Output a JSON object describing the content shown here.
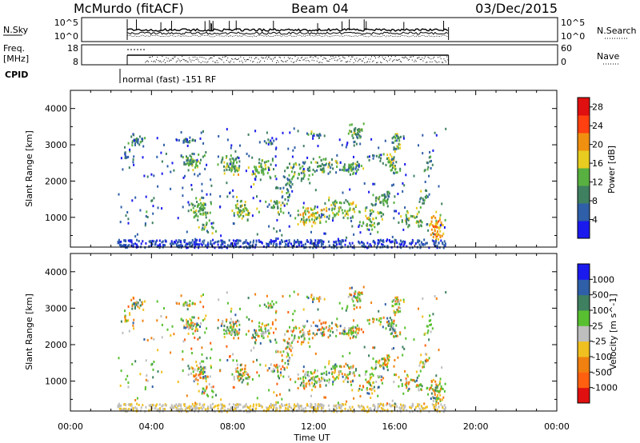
{
  "header": {
    "station": "McMurdo (fitACF)",
    "beam": "Beam 04",
    "date": "03/Dec/2015"
  },
  "noise_panel": {
    "left_label": "N.Sky",
    "right_label": "N.Search",
    "left_ticks": [
      "10^5",
      "10^0"
    ],
    "right_ticks": [
      "10^5",
      "10^0"
    ]
  },
  "freq_panel": {
    "left_label_1": "Freq.",
    "left_label_2": "[MHz]",
    "left_ticks": [
      "18",
      "8"
    ],
    "right_label": "Nave",
    "right_ticks": [
      "60",
      "0"
    ]
  },
  "cpid": {
    "label": "CPID",
    "mode": "normal (fast) -151 RF"
  },
  "chart_data": [
    {
      "type": "heatmap",
      "parameter": "power",
      "ylabel": "Slant Range [km]",
      "xlabel": "",
      "xlim": [
        0,
        24
      ],
      "ylim": [
        180,
        4500
      ],
      "x_ticks": [
        "00:00",
        "04:00",
        "08:00",
        "12:00",
        "16:00",
        "20:00",
        "00:00"
      ],
      "y_ticks": [
        1000,
        2000,
        3000,
        4000
      ],
      "data_window_hours": [
        2.3,
        18.5
      ],
      "colorbar": {
        "label": "Power [dB]",
        "ticks": [
          4,
          8,
          12,
          16,
          20,
          24,
          28
        ],
        "range": [
          0,
          30
        ],
        "colors": [
          "#1a1aee",
          "#2f5fa8",
          "#3f8060",
          "#58b040",
          "#e8cc20",
          "#f09010",
          "#ff4010",
          "#e01010"
        ]
      }
    },
    {
      "type": "heatmap",
      "parameter": "velocity",
      "ylabel": "Slant Range [km]",
      "xlabel": "Time UT",
      "xlim": [
        0,
        24
      ],
      "ylim": [
        180,
        4500
      ],
      "x_ticks": [
        "00:00",
        "04:00",
        "08:00",
        "12:00",
        "16:00",
        "20:00",
        "00:00"
      ],
      "y_ticks": [
        1000,
        2000,
        3000,
        4000
      ],
      "data_window_hours": [
        2.3,
        18.5
      ],
      "colorbar": {
        "label": "Velocity [m s^-1]",
        "ticks": [
          "1000",
          "500",
          "100",
          "25",
          "-25",
          "-100",
          "-500",
          "-1000"
        ],
        "colors": [
          "#1a1aee",
          "#2f5fa8",
          "#3f8060",
          "#58c030",
          "#bebebe",
          "#f0c020",
          "#f08010",
          "#ff6010",
          "#e01010"
        ]
      }
    }
  ]
}
